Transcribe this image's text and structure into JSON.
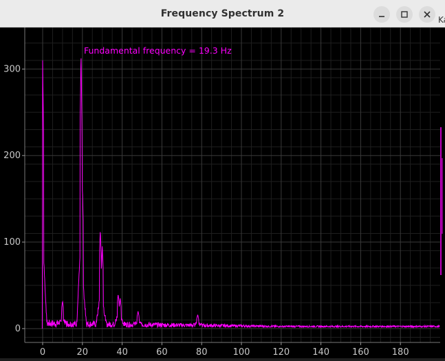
{
  "window": {
    "title": "Frequency Spectrum 2",
    "minimize_icon": "minimize-icon",
    "maximize_icon": "maximize-icon",
    "close_icon": "close-icon",
    "peek_text": "Ka"
  },
  "annotation": {
    "text": "Fundamental frequency =  19.3 Hz",
    "color": "#ff00ff"
  },
  "chart_data": {
    "type": "line",
    "title": "",
    "xlabel": "",
    "ylabel": "",
    "xlim": [
      -9,
      200
    ],
    "ylim": [
      -16,
      348
    ],
    "xticks": [
      0,
      20,
      40,
      60,
      80,
      100,
      120,
      140,
      160,
      180
    ],
    "yticks": [
      0,
      100,
      200,
      300
    ],
    "grid": true,
    "background": "#000000",
    "line_color": "#ff00ff",
    "peaks": [
      {
        "x": 0,
        "y": 310
      },
      {
        "x": 10,
        "y": 32
      },
      {
        "x": 19.3,
        "y": 322
      },
      {
        "x": 20,
        "y": 165
      },
      {
        "x": 29,
        "y": 115
      },
      {
        "x": 30,
        "y": 95
      },
      {
        "x": 38,
        "y": 40
      },
      {
        "x": 39,
        "y": 35
      },
      {
        "x": 48,
        "y": 20
      },
      {
        "x": 78,
        "y": 16
      }
    ]
  }
}
